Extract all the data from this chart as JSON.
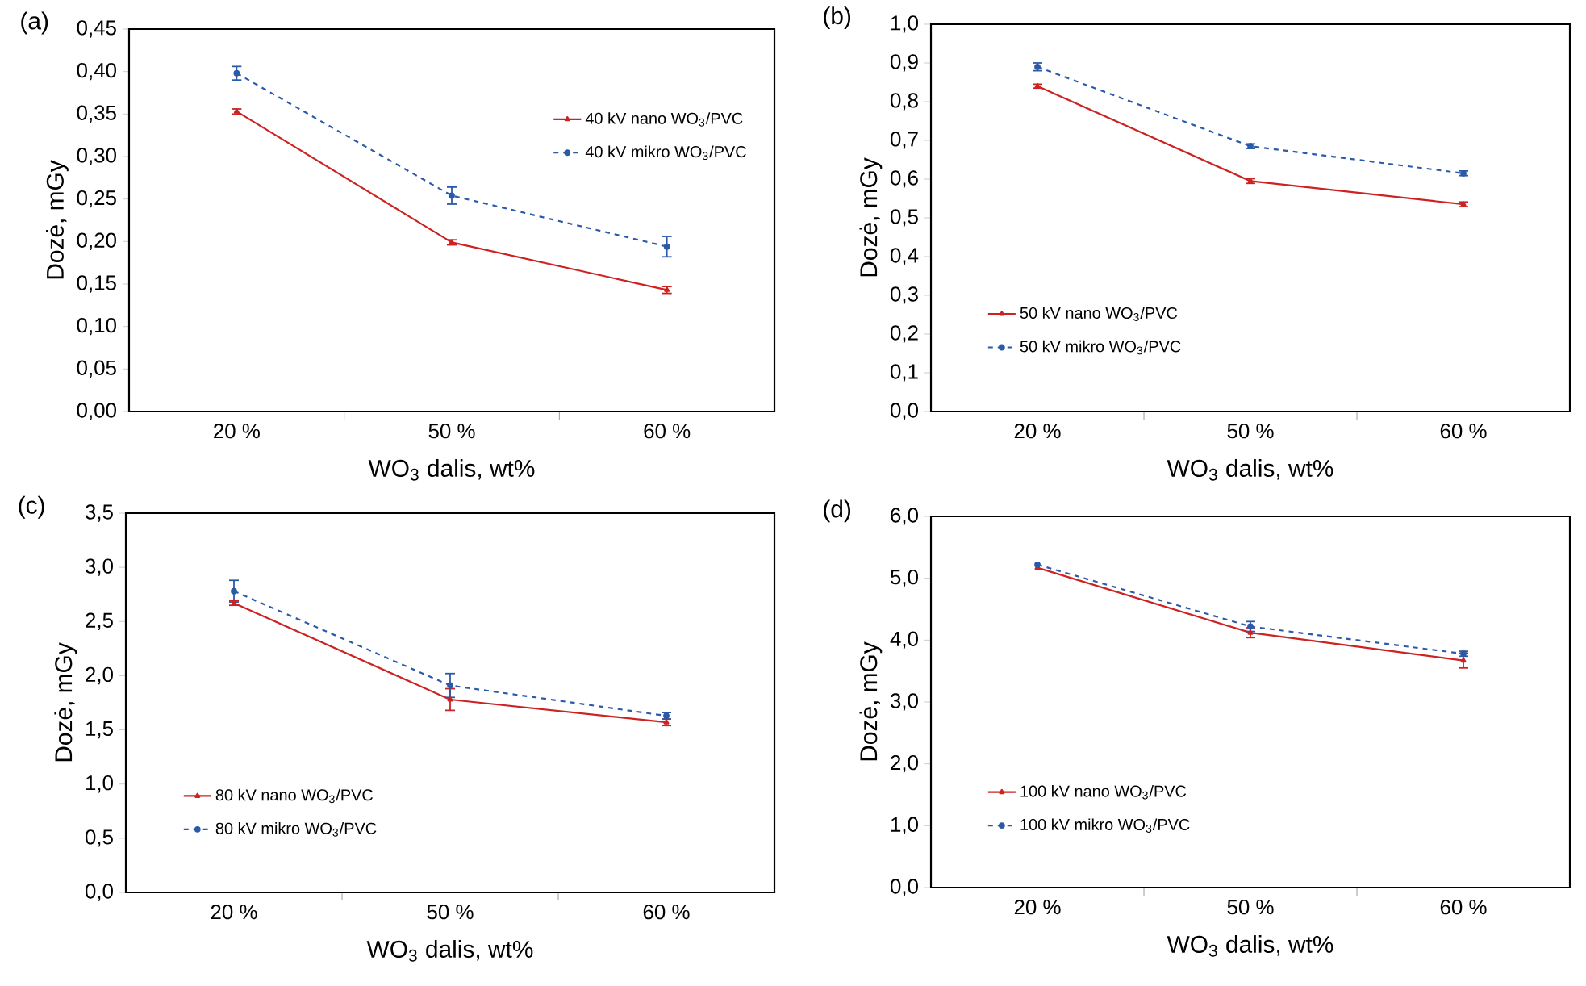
{
  "chart_data": [
    {
      "type": "line",
      "title": "(a)",
      "xlabel": "WO$_{3}$ dalis, wt%",
      "ylabel": "Dozė, mGy",
      "categories": [
        "20 %",
        "50 %",
        "60 %"
      ],
      "ylim": [
        0,
        0.45
      ],
      "yticks": [
        {
          "value": 0,
          "label": "0,00"
        },
        {
          "value": 0.05,
          "label": "0,05"
        },
        {
          "value": 0.1,
          "label": "0,10"
        },
        {
          "value": 0.15,
          "label": "0,15"
        },
        {
          "value": 0.2,
          "label": "0,20"
        },
        {
          "value": 0.25,
          "label": "0,25"
        },
        {
          "value": 0.3,
          "label": "0,30"
        },
        {
          "value": 0.35,
          "label": "0,35"
        },
        {
          "value": 0.4,
          "label": "0,40"
        },
        {
          "value": 0.45,
          "label": "0,45"
        }
      ],
      "legend": "top right",
      "grid": false,
      "series": [
        {
          "name": "40 kV nano WO$_{3}$/PVC",
          "color": "#cc2222",
          "marker": "triangle",
          "line_style": "solid",
          "values": [
            0.353,
            0.199,
            0.143
          ],
          "errors": [
            0.003,
            0.003,
            0.004
          ]
        },
        {
          "name": "40 kV mikro WO$_{3}$/PVC",
          "color": "#2a5aa8",
          "marker": "circle",
          "line_style": "dashed",
          "values": [
            0.398,
            0.254,
            0.194
          ],
          "errors": [
            0.008,
            0.01,
            0.012
          ]
        }
      ]
    },
    {
      "type": "line",
      "title": "(b)",
      "xlabel": "WO$_{3}$ dalis, wt%",
      "ylabel": "Dozė, mGy",
      "categories": [
        "20 %",
        "50 %",
        "60 %"
      ],
      "ylim": [
        0,
        1.0
      ],
      "yticks": [
        {
          "value": 0,
          "label": "0,0"
        },
        {
          "value": 0.1,
          "label": "0,1"
        },
        {
          "value": 0.2,
          "label": "0,2"
        },
        {
          "value": 0.3,
          "label": "0,3"
        },
        {
          "value": 0.4,
          "label": "0,4"
        },
        {
          "value": 0.5,
          "label": "0,5"
        },
        {
          "value": 0.6,
          "label": "0,6"
        },
        {
          "value": 0.7,
          "label": "0,7"
        },
        {
          "value": 0.8,
          "label": "0,8"
        },
        {
          "value": 0.9,
          "label": "0,9"
        },
        {
          "value": 1.0,
          "label": "1,0"
        }
      ],
      "legend": "bottom left",
      "grid": false,
      "series": [
        {
          "name": "50 kV nano WO$_{3}$/PVC",
          "color": "#cc2222",
          "marker": "triangle",
          "line_style": "solid",
          "values": [
            0.84,
            0.595,
            0.535
          ],
          "errors": [
            0.005,
            0.006,
            0.006
          ]
        },
        {
          "name": "50 kV mikro WO$_{3}$/PVC",
          "color": "#2a5aa8",
          "marker": "circle",
          "line_style": "dashed",
          "values": [
            0.89,
            0.685,
            0.615
          ],
          "errors": [
            0.01,
            0.006,
            0.006
          ]
        }
      ]
    },
    {
      "type": "line",
      "title": "(c)",
      "xlabel": "WO$_{3}$ dalis, wt%",
      "ylabel": "Dozė, mGy",
      "categories": [
        "20 %",
        "50 %",
        "60 %"
      ],
      "ylim": [
        0,
        3.5
      ],
      "yticks": [
        {
          "value": 0,
          "label": "0,0"
        },
        {
          "value": 0.5,
          "label": "0,5"
        },
        {
          "value": 1.0,
          "label": "1,0"
        },
        {
          "value": 1.5,
          "label": "1,5"
        },
        {
          "value": 2.0,
          "label": "2,0"
        },
        {
          "value": 2.5,
          "label": "2,5"
        },
        {
          "value": 3.0,
          "label": "3,0"
        },
        {
          "value": 3.5,
          "label": "3,5"
        }
      ],
      "legend": "bottom left",
      "grid": false,
      "series": [
        {
          "name": "80 kV nano WO$_{3}$/PVC",
          "color": "#cc2222",
          "marker": "triangle",
          "line_style": "solid",
          "values": [
            2.67,
            1.78,
            1.57
          ],
          "errors": [
            0.02,
            0.1,
            0.03
          ]
        },
        {
          "name": "80 kV mikro WO$_{3}$/PVC",
          "color": "#2a5aa8",
          "marker": "circle",
          "line_style": "dashed",
          "values": [
            2.78,
            1.91,
            1.63
          ],
          "errors": [
            0.1,
            0.11,
            0.03
          ]
        }
      ]
    },
    {
      "type": "line",
      "title": "(d)",
      "xlabel": "WO$_{3}$ dalis, wt%",
      "ylabel": "Dozė, mGy",
      "categories": [
        "20 %",
        "50 %",
        "60 %"
      ],
      "ylim": [
        0,
        6.0
      ],
      "yticks": [
        {
          "value": 0,
          "label": "0,0"
        },
        {
          "value": 1.0,
          "label": "1,0"
        },
        {
          "value": 2.0,
          "label": "2,0"
        },
        {
          "value": 3.0,
          "label": "3,0"
        },
        {
          "value": 4.0,
          "label": "4,0"
        },
        {
          "value": 5.0,
          "label": "5,0"
        },
        {
          "value": 6.0,
          "label": "6,0"
        }
      ],
      "legend": "bottom left",
      "grid": false,
      "series": [
        {
          "name": "100 kV nano WO$_{3}$/PVC",
          "color": "#cc2222",
          "marker": "triangle",
          "line_style": "solid",
          "values": [
            5.17,
            4.12,
            3.67
          ],
          "errors": [
            null,
            0.08,
            0.12
          ]
        },
        {
          "name": "100 kV mikro WO$_{3}$/PVC",
          "color": "#2a5aa8",
          "marker": "circle",
          "line_style": "dashed",
          "values": [
            5.22,
            4.22,
            3.78
          ],
          "errors": [
            null,
            0.08,
            0.04
          ]
        }
      ]
    }
  ]
}
